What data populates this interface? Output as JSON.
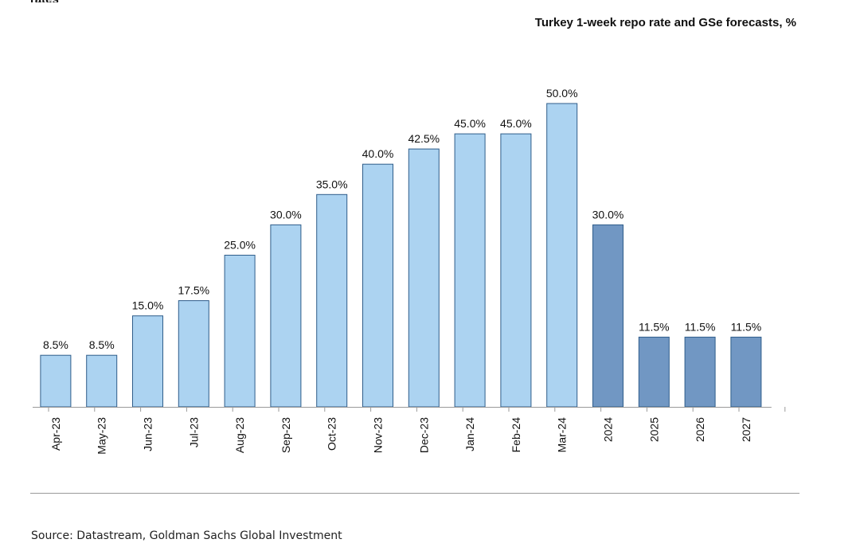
{
  "header": {
    "fragment": "rates",
    "source": "Source: Datastream, Goldman Sachs Global Investment"
  },
  "chart_data": {
    "type": "bar",
    "title": "Turkey 1-week repo rate and GSe forecasts, %",
    "xlabel": "",
    "ylabel": "",
    "ylim": [
      0,
      55
    ],
    "grid": false,
    "categories": [
      "Apr-23",
      "May-23",
      "Jun-23",
      "Jul-23",
      "Aug-23",
      "Sep-23",
      "Oct-23",
      "Nov-23",
      "Dec-23",
      "Jan-24",
      "Feb-24",
      "Mar-24",
      "2024",
      "2025",
      "2026",
      "2027"
    ],
    "values": [
      8.5,
      8.5,
      15.0,
      17.5,
      25.0,
      30.0,
      35.0,
      40.0,
      42.5,
      45.0,
      45.0,
      50.0,
      30.0,
      11.5,
      11.5,
      11.5
    ],
    "data_labels": [
      "8.5%",
      "8.5%",
      "15.0%",
      "17.5%",
      "25.0%",
      "30.0%",
      "35.0%",
      "40.0%",
      "42.5%",
      "45.0%",
      "45.0%",
      "50.0%",
      "30.0%",
      "11.5%",
      "11.5%",
      "11.5%"
    ],
    "series": [
      {
        "values": [
          8.5,
          8.5,
          15.0,
          17.5,
          25.0,
          30.0,
          35.0,
          40.0,
          42.5,
          45.0,
          45.0,
          50.0,
          null,
          null,
          null,
          null
        ],
        "color": "#acd3f1"
      },
      {
        "values": [
          null,
          null,
          null,
          null,
          null,
          null,
          null,
          null,
          null,
          null,
          null,
          null,
          30.0,
          11.5,
          11.5,
          11.5
        ],
        "color": "#7197c3"
      }
    ],
    "colors": {
      "actual": "#acd3f1",
      "forecast": "#7197c3",
      "bar_stroke": "#2f5d8a",
      "axis": "#9a9a9a"
    }
  }
}
